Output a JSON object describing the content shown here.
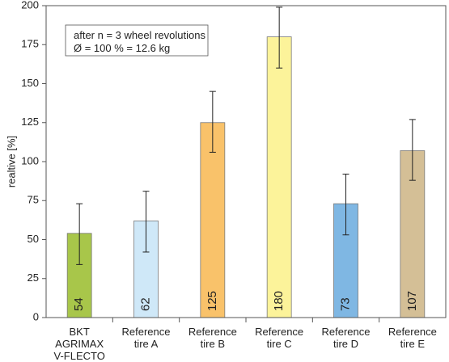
{
  "chart_data": {
    "type": "bar",
    "categories": [
      [
        "BKT",
        "AGRIMAX",
        "V-FLECTO"
      ],
      [
        "Reference",
        "tire A"
      ],
      [
        "Reference",
        "tire B"
      ],
      [
        "Reference",
        "tire C"
      ],
      [
        "Reference",
        "tire D"
      ],
      [
        "Reference",
        "tire E"
      ]
    ],
    "values": [
      54,
      62,
      125,
      180,
      73,
      107
    ],
    "error_low": [
      34,
      42,
      106,
      160,
      53,
      88
    ],
    "error_high": [
      73,
      81,
      145,
      199,
      92,
      127
    ],
    "value_labels": [
      "54",
      "62",
      "125",
      "180",
      "73",
      "107"
    ],
    "colors": [
      "#a8c64a",
      "#cfe8f8",
      "#f9c26a",
      "#fcf39a",
      "#7fb7e3",
      "#d4bf96"
    ],
    "ylabel": "realtive [%]",
    "ylim": [
      0,
      200
    ],
    "yticks": [
      0,
      25,
      50,
      75,
      100,
      125,
      150,
      175,
      200
    ],
    "grid": false,
    "annotation": [
      "after n = 3 wheel revolutions",
      "Ø = 100 % = 12.6 kg"
    ]
  }
}
